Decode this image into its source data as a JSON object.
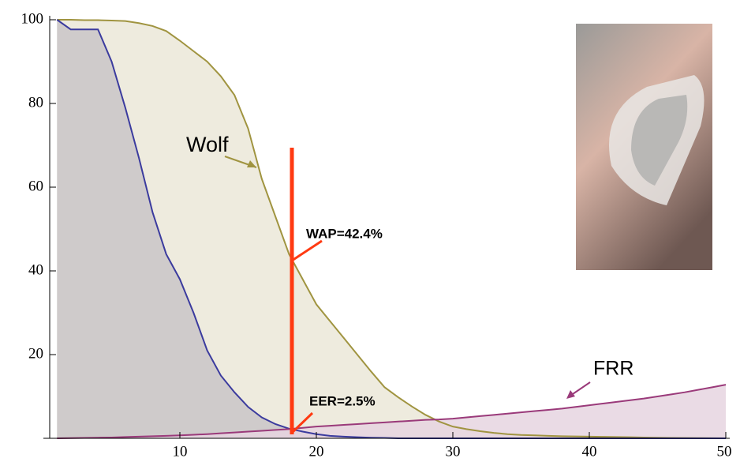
{
  "chart_data": {
    "type": "area",
    "x": [
      1,
      2,
      3,
      4,
      5,
      6,
      7,
      8,
      9,
      10,
      11,
      12,
      13,
      14,
      15,
      16,
      17,
      18,
      19,
      20,
      21,
      22,
      23,
      24,
      25,
      26,
      27,
      28,
      29,
      30,
      31,
      32,
      33,
      34,
      35,
      36,
      37,
      38,
      39,
      40,
      41,
      42,
      43,
      44,
      45,
      46,
      47,
      48,
      49,
      50
    ],
    "series": [
      {
        "color": "#a09440",
        "fill": "#ebe7d8",
        "values": [
          100,
          100,
          99.9,
          99.9,
          99.8,
          99.7,
          99.2,
          98.5,
          97.3,
          95,
          92.5,
          90,
          86.5,
          82,
          74,
          62,
          53,
          44,
          38,
          32,
          28,
          24,
          20,
          16,
          12.2,
          9.8,
          7.6,
          5.6,
          4,
          2.8,
          2.2,
          1.7,
          1.3,
          1,
          0.8,
          0.7,
          0.6,
          0.5,
          0.45,
          0.4,
          0.35,
          0.3,
          0.25,
          0.2,
          0.15,
          0.1,
          0.08,
          0.05,
          0.02,
          0
        ]
      },
      {
        "color": "#3b3b9e",
        "fill": "#c9c5c8",
        "values": [
          100,
          97.7,
          97.7,
          97.7,
          90,
          79,
          67,
          54,
          44,
          38,
          30,
          21,
          15,
          11,
          7.5,
          5,
          3.4,
          2.3,
          1.6,
          1,
          0.6,
          0.4,
          0.25,
          0.15,
          0.1,
          0,
          0,
          0,
          0,
          0,
          0,
          0,
          0,
          0,
          0,
          0,
          0,
          0,
          0,
          0,
          0,
          0,
          0,
          0,
          0,
          0,
          0,
          0,
          0,
          0
        ]
      },
      {
        "color": "#9a3a7a",
        "fill": "#e6d5e0",
        "values": [
          0,
          0.05,
          0.1,
          0.15,
          0.2,
          0.3,
          0.4,
          0.5,
          0.6,
          0.7,
          0.85,
          1,
          1.2,
          1.4,
          1.6,
          1.8,
          2,
          2.2,
          2.5,
          2.8,
          3,
          3.2,
          3.4,
          3.6,
          3.8,
          4,
          4.2,
          4.4,
          4.5,
          4.7,
          5,
          5.3,
          5.6,
          5.9,
          6.2,
          6.5,
          6.8,
          7.1,
          7.5,
          7.9,
          8.3,
          8.7,
          9.1,
          9.5,
          10,
          10.5,
          11,
          11.6,
          12.2,
          12.8
        ]
      }
    ],
    "xlim": [
      0,
      50
    ],
    "ylim": [
      0,
      100
    ],
    "xticks": [
      10,
      20,
      30,
      40,
      50
    ],
    "yticks": [
      20,
      40,
      60,
      80,
      100
    ],
    "annotations": [
      "Wolf",
      "FRR",
      "WAP=42.4%",
      "EER=2.5%"
    ]
  }
}
